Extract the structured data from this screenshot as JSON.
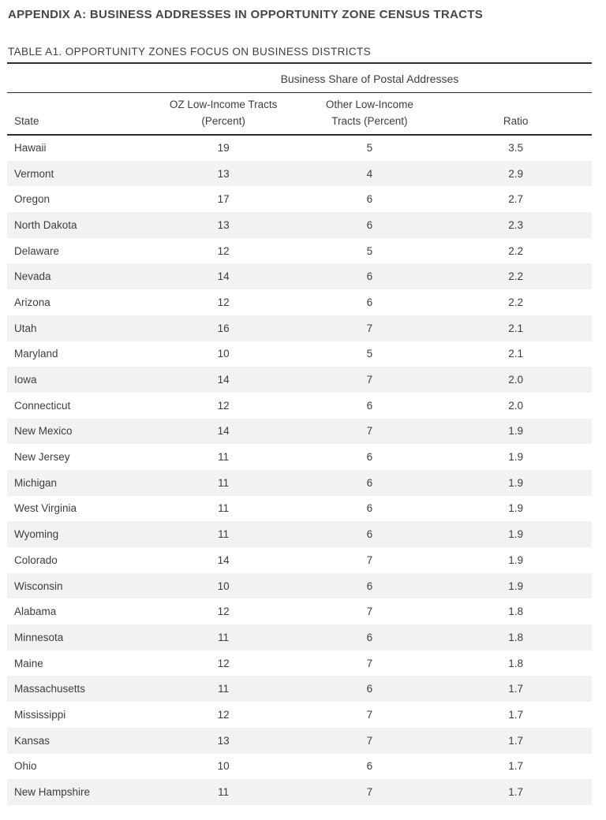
{
  "page": {
    "appendix_title": "APPENDIX A: BUSINESS ADDRESSES IN OPPORTUNITY ZONE CENSUS TRACTS",
    "table_title": "TABLE A1. OPPORTUNITY ZONES FOCUS ON BUSINESS DISTRICTS"
  },
  "colors": {
    "rule": "#2e2e2e",
    "stripe": "#f2f2f2",
    "text": "#3d3d3d",
    "title": "#474747"
  },
  "table": {
    "span_header": "Business Share of Postal Addresses",
    "columns": {
      "state": "State",
      "oz_line1": "OZ Low-Income Tracts",
      "oz_line2": "(Percent)",
      "other_line1": "Other Low-Income",
      "other_line2": "Tracts (Percent)",
      "ratio": "Ratio"
    },
    "rows": [
      {
        "state": "Hawaii",
        "oz": "19",
        "other": "5",
        "ratio": "3.5"
      },
      {
        "state": "Vermont",
        "oz": "13",
        "other": "4",
        "ratio": "2.9"
      },
      {
        "state": "Oregon",
        "oz": "17",
        "other": "6",
        "ratio": "2.7"
      },
      {
        "state": "North Dakota",
        "oz": "13",
        "other": "6",
        "ratio": "2.3"
      },
      {
        "state": "Delaware",
        "oz": "12",
        "other": "5",
        "ratio": "2.2"
      },
      {
        "state": "Nevada",
        "oz": "14",
        "other": "6",
        "ratio": "2.2"
      },
      {
        "state": "Arizona",
        "oz": "12",
        "other": "6",
        "ratio": "2.2"
      },
      {
        "state": "Utah",
        "oz": "16",
        "other": "7",
        "ratio": "2.1"
      },
      {
        "state": "Maryland",
        "oz": "10",
        "other": "5",
        "ratio": "2.1"
      },
      {
        "state": "Iowa",
        "oz": "14",
        "other": "7",
        "ratio": "2.0"
      },
      {
        "state": "Connecticut",
        "oz": "12",
        "other": "6",
        "ratio": "2.0"
      },
      {
        "state": "New Mexico",
        "oz": "14",
        "other": "7",
        "ratio": "1.9"
      },
      {
        "state": "New Jersey",
        "oz": "11",
        "other": "6",
        "ratio": "1.9"
      },
      {
        "state": "Michigan",
        "oz": "11",
        "other": "6",
        "ratio": "1.9"
      },
      {
        "state": "West Virginia",
        "oz": "11",
        "other": "6",
        "ratio": "1.9"
      },
      {
        "state": "Wyoming",
        "oz": "11",
        "other": "6",
        "ratio": "1.9"
      },
      {
        "state": "Colorado",
        "oz": "14",
        "other": "7",
        "ratio": "1.9"
      },
      {
        "state": "Wisconsin",
        "oz": "10",
        "other": "6",
        "ratio": "1.9"
      },
      {
        "state": "Alabama",
        "oz": "12",
        "other": "7",
        "ratio": "1.8"
      },
      {
        "state": "Minnesota",
        "oz": "11",
        "other": "6",
        "ratio": "1.8"
      },
      {
        "state": "Maine",
        "oz": "12",
        "other": "7",
        "ratio": "1.8"
      },
      {
        "state": "Massachusetts",
        "oz": "11",
        "other": "6",
        "ratio": "1.7"
      },
      {
        "state": "Mississippi",
        "oz": "12",
        "other": "7",
        "ratio": "1.7"
      },
      {
        "state": "Kansas",
        "oz": "13",
        "other": "7",
        "ratio": "1.7"
      },
      {
        "state": "Ohio",
        "oz": "10",
        "other": "6",
        "ratio": "1.7"
      },
      {
        "state": "New Hampshire",
        "oz": "11",
        "other": "7",
        "ratio": "1.7"
      }
    ]
  }
}
